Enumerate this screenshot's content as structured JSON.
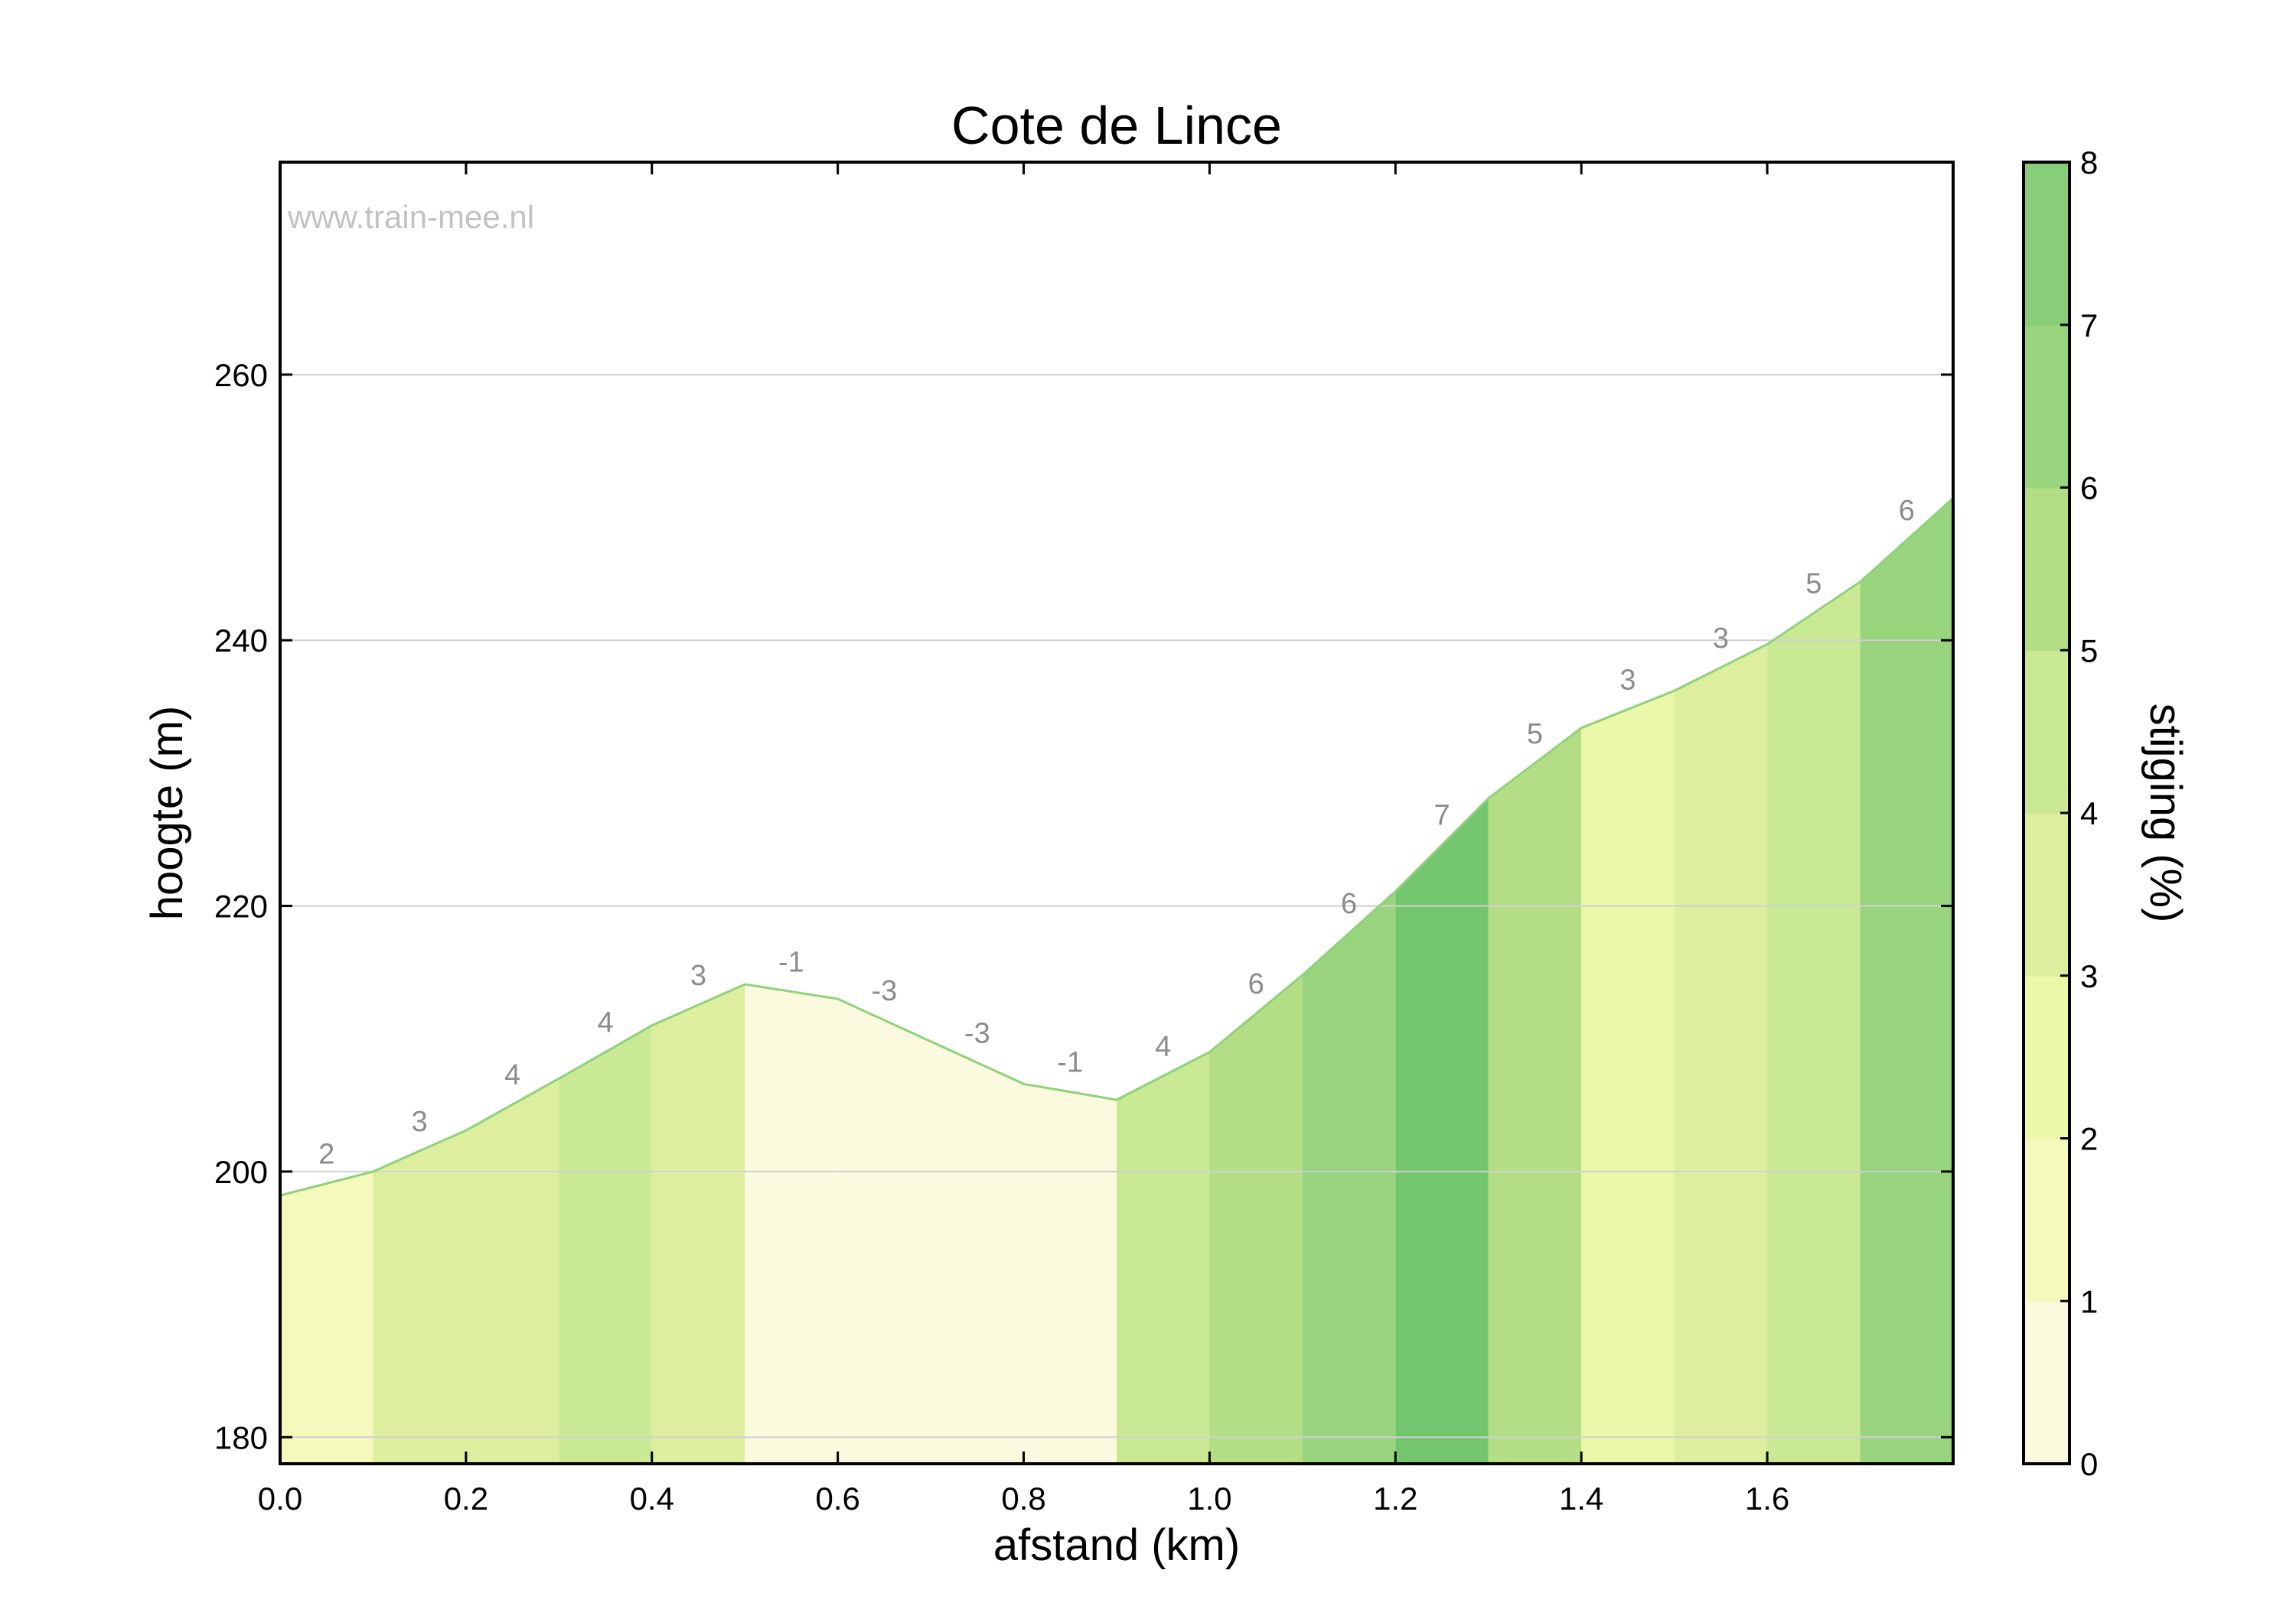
{
  "chart_data": {
    "type": "area",
    "title": "Cote de Lince",
    "watermark": "www.train-mee.nl",
    "xlabel": "afstand (km)",
    "ylabel": "hoogte (m)",
    "colorbar_label": "stijging (%)",
    "xlim": [
      0,
      1.8
    ],
    "ylim": [
      178,
      276
    ],
    "x_ticks": [
      "0.0",
      "0.2",
      "0.4",
      "0.6",
      "0.8",
      "1.0",
      "1.2",
      "1.4",
      "1.6"
    ],
    "x_tick_values": [
      0,
      0.2,
      0.4,
      0.6,
      0.8,
      1.0,
      1.2,
      1.4,
      1.6
    ],
    "y_ticks": [
      "180",
      "200",
      "220",
      "240",
      "260"
    ],
    "y_tick_values": [
      180,
      200,
      220,
      240,
      260
    ],
    "colorbar_ticks": [
      "0",
      "1",
      "2",
      "3",
      "4",
      "5",
      "6",
      "7",
      "8"
    ],
    "colorbar_colors": [
      "#fbf9de",
      "#f5f9bb",
      "#ebf7a9",
      "#ddef9e",
      "#c9e994",
      "#b3de86",
      "#98d37d",
      "#88cd77",
      "#74c66e"
    ],
    "grid": true,
    "distance_km": [
      0,
      0.1,
      0.2,
      0.3,
      0.4,
      0.5,
      0.6,
      0.7,
      0.8,
      0.9,
      1.0,
      1.1,
      1.2,
      1.3,
      1.4,
      1.5,
      1.6,
      1.7,
      1.8
    ],
    "elevation_m": [
      198.2,
      200.0,
      203.1,
      207.0,
      211.0,
      214.1,
      213.0,
      209.8,
      206.6,
      205.4,
      209.0,
      214.8,
      221.1,
      228.1,
      233.4,
      236.2,
      239.7,
      244.4,
      250.7
    ],
    "segment_grade_labels": [
      "2",
      "3",
      "4",
      "4",
      "3",
      "-1",
      "-3",
      "-3",
      "-1",
      "4",
      "6",
      "6",
      "7",
      "5",
      "3",
      "3",
      "5",
      "6"
    ],
    "segment_colors": [
      "#f5f9bb",
      "#ddef9e",
      "#ddef9e",
      "#c9e994",
      "#ddef9e",
      "#fbf9de",
      "#fbf9de",
      "#fbf9de",
      "#fbf9de",
      "#c9e994",
      "#b3de86",
      "#98d37d",
      "#74c66e",
      "#b3de86",
      "#ebf7a9",
      "#ddef9e",
      "#c9e994",
      "#98d37d"
    ]
  }
}
